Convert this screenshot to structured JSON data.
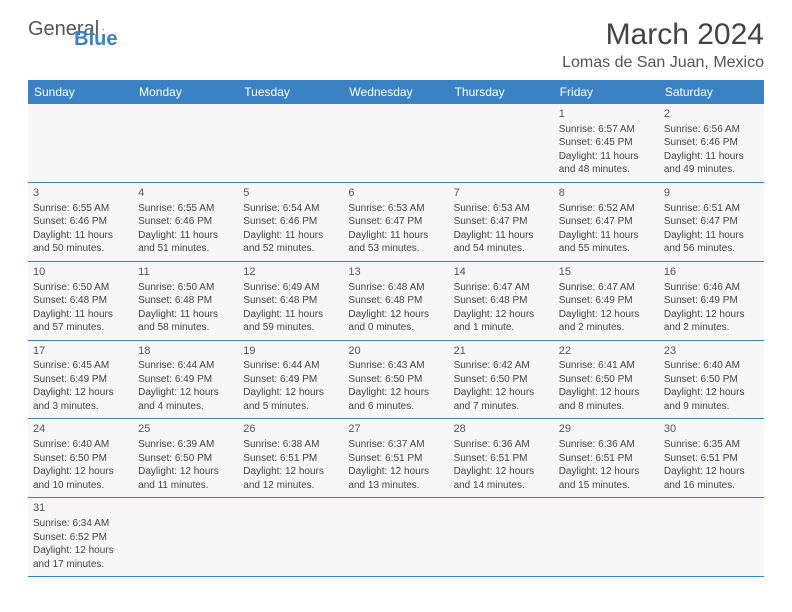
{
  "logo": {
    "text1": "General",
    "text2": "Blue"
  },
  "title": "March 2024",
  "location": "Lomas de San Juan, Mexico",
  "colors": {
    "header_bg": "#3b82c4",
    "border": "#3b82c4",
    "cell_bg": "#f7f7f7"
  },
  "weekdays": [
    "Sunday",
    "Monday",
    "Tuesday",
    "Wednesday",
    "Thursday",
    "Friday",
    "Saturday"
  ],
  "days": [
    {
      "n": 1,
      "sr": "6:57 AM",
      "ss": "6:45 PM",
      "dl": "11 hours and 48 minutes."
    },
    {
      "n": 2,
      "sr": "6:56 AM",
      "ss": "6:46 PM",
      "dl": "11 hours and 49 minutes."
    },
    {
      "n": 3,
      "sr": "6:55 AM",
      "ss": "6:46 PM",
      "dl": "11 hours and 50 minutes."
    },
    {
      "n": 4,
      "sr": "6:55 AM",
      "ss": "6:46 PM",
      "dl": "11 hours and 51 minutes."
    },
    {
      "n": 5,
      "sr": "6:54 AM",
      "ss": "6:46 PM",
      "dl": "11 hours and 52 minutes."
    },
    {
      "n": 6,
      "sr": "6:53 AM",
      "ss": "6:47 PM",
      "dl": "11 hours and 53 minutes."
    },
    {
      "n": 7,
      "sr": "6:53 AM",
      "ss": "6:47 PM",
      "dl": "11 hours and 54 minutes."
    },
    {
      "n": 8,
      "sr": "6:52 AM",
      "ss": "6:47 PM",
      "dl": "11 hours and 55 minutes."
    },
    {
      "n": 9,
      "sr": "6:51 AM",
      "ss": "6:47 PM",
      "dl": "11 hours and 56 minutes."
    },
    {
      "n": 10,
      "sr": "6:50 AM",
      "ss": "6:48 PM",
      "dl": "11 hours and 57 minutes."
    },
    {
      "n": 11,
      "sr": "6:50 AM",
      "ss": "6:48 PM",
      "dl": "11 hours and 58 minutes."
    },
    {
      "n": 12,
      "sr": "6:49 AM",
      "ss": "6:48 PM",
      "dl": "11 hours and 59 minutes."
    },
    {
      "n": 13,
      "sr": "6:48 AM",
      "ss": "6:48 PM",
      "dl": "12 hours and 0 minutes."
    },
    {
      "n": 14,
      "sr": "6:47 AM",
      "ss": "6:48 PM",
      "dl": "12 hours and 1 minute."
    },
    {
      "n": 15,
      "sr": "6:47 AM",
      "ss": "6:49 PM",
      "dl": "12 hours and 2 minutes."
    },
    {
      "n": 16,
      "sr": "6:46 AM",
      "ss": "6:49 PM",
      "dl": "12 hours and 2 minutes."
    },
    {
      "n": 17,
      "sr": "6:45 AM",
      "ss": "6:49 PM",
      "dl": "12 hours and 3 minutes."
    },
    {
      "n": 18,
      "sr": "6:44 AM",
      "ss": "6:49 PM",
      "dl": "12 hours and 4 minutes."
    },
    {
      "n": 19,
      "sr": "6:44 AM",
      "ss": "6:49 PM",
      "dl": "12 hours and 5 minutes."
    },
    {
      "n": 20,
      "sr": "6:43 AM",
      "ss": "6:50 PM",
      "dl": "12 hours and 6 minutes."
    },
    {
      "n": 21,
      "sr": "6:42 AM",
      "ss": "6:50 PM",
      "dl": "12 hours and 7 minutes."
    },
    {
      "n": 22,
      "sr": "6:41 AM",
      "ss": "6:50 PM",
      "dl": "12 hours and 8 minutes."
    },
    {
      "n": 23,
      "sr": "6:40 AM",
      "ss": "6:50 PM",
      "dl": "12 hours and 9 minutes."
    },
    {
      "n": 24,
      "sr": "6:40 AM",
      "ss": "6:50 PM",
      "dl": "12 hours and 10 minutes."
    },
    {
      "n": 25,
      "sr": "6:39 AM",
      "ss": "6:50 PM",
      "dl": "12 hours and 11 minutes."
    },
    {
      "n": 26,
      "sr": "6:38 AM",
      "ss": "6:51 PM",
      "dl": "12 hours and 12 minutes."
    },
    {
      "n": 27,
      "sr": "6:37 AM",
      "ss": "6:51 PM",
      "dl": "12 hours and 13 minutes."
    },
    {
      "n": 28,
      "sr": "6:36 AM",
      "ss": "6:51 PM",
      "dl": "12 hours and 14 minutes."
    },
    {
      "n": 29,
      "sr": "6:36 AM",
      "ss": "6:51 PM",
      "dl": "12 hours and 15 minutes."
    },
    {
      "n": 30,
      "sr": "6:35 AM",
      "ss": "6:51 PM",
      "dl": "12 hours and 16 minutes."
    },
    {
      "n": 31,
      "sr": "6:34 AM",
      "ss": "6:52 PM",
      "dl": "12 hours and 17 minutes."
    }
  ],
  "first_weekday": 5,
  "labels": {
    "sunrise": "Sunrise:",
    "sunset": "Sunset:",
    "daylight": "Daylight:"
  }
}
